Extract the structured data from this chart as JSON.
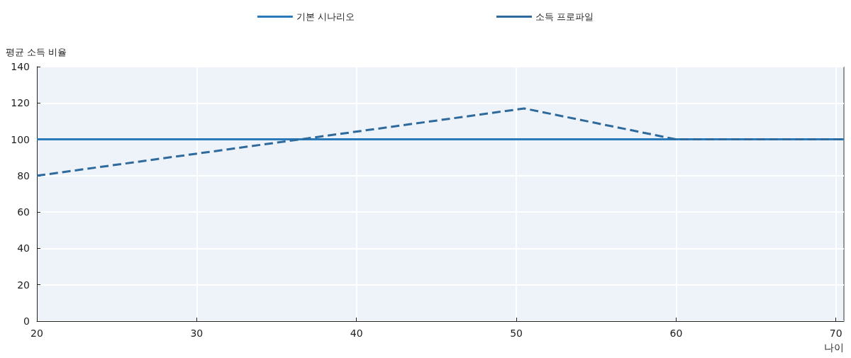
{
  "chart_data": {
    "type": "line",
    "xlabel": "나이",
    "ylabel": "평균 소득 비율",
    "xlim": [
      20,
      70.5
    ],
    "xticks": [
      20,
      30,
      40,
      50,
      60,
      70
    ],
    "ylim": [
      0,
      140
    ],
    "yticks": [
      0,
      20,
      40,
      60,
      80,
      100,
      120,
      140
    ],
    "grid": true,
    "legend": "top",
    "marker": "none",
    "series": [
      {
        "name": "기본 시나리오",
        "color": "#2a7ab9",
        "x": [
          20,
          70.5
        ],
        "values": [
          100,
          100
        ],
        "line_style": "solid"
      },
      {
        "name": "소득 프로파일",
        "color": "#2f6a9c",
        "x": [
          20,
          50.5,
          60,
          70.5
        ],
        "values": [
          80,
          117,
          100,
          100
        ],
        "line_style": "dashed"
      }
    ]
  }
}
